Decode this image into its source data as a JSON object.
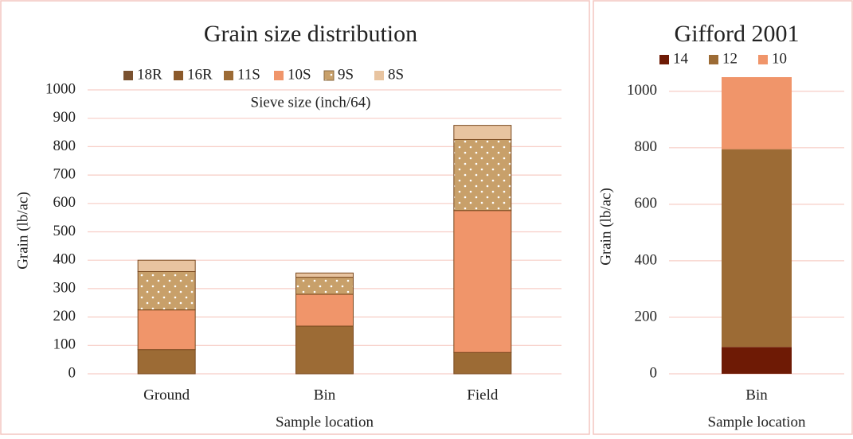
{
  "chart_data": [
    {
      "type": "stacked_bar",
      "title": "Grain size distribution",
      "legend_title": "Sieve size (inch/64)",
      "x_label": "Sample location",
      "y_label": "Grain (lb/ac)",
      "categories": [
        "Ground",
        "Bin",
        "Field"
      ],
      "series": [
        {
          "name": "18R",
          "color": "#7a5230",
          "values": [
            0,
            0,
            0
          ]
        },
        {
          "name": "16R",
          "color": "#8b5a2b",
          "values": [
            0,
            0,
            0
          ]
        },
        {
          "name": "11S",
          "color": "#9c6b35",
          "values": [
            85,
            168,
            75
          ]
        },
        {
          "name": "10S",
          "color": "#f0956a",
          "values": [
            140,
            112,
            500
          ]
        },
        {
          "name": "9S",
          "color": "#c8a06a",
          "pattern": "dots",
          "values": [
            135,
            60,
            250
          ]
        },
        {
          "name": "8S",
          "color": "#e8c4a0",
          "values": [
            40,
            15,
            50
          ]
        }
      ],
      "ylim": [
        0,
        1000
      ],
      "yticks": [
        0,
        100,
        200,
        300,
        400,
        500,
        600,
        700,
        800,
        900,
        1000
      ],
      "grid": true
    },
    {
      "type": "stacked_bar",
      "title": "Gifford 2001",
      "x_label": "Sample location",
      "y_label": "Grain (lb/ac)",
      "categories": [
        "Bin"
      ],
      "series": [
        {
          "name": "14",
          "color": "#6e1a05",
          "values": [
            95
          ]
        },
        {
          "name": "12",
          "color": "#9c6b35",
          "values": [
            700
          ]
        },
        {
          "name": "10",
          "color": "#f0956a",
          "values": [
            255
          ]
        }
      ],
      "ylim": [
        0,
        1050
      ],
      "yticks": [
        0,
        200,
        400,
        600,
        800,
        1000
      ],
      "grid": true
    }
  ]
}
